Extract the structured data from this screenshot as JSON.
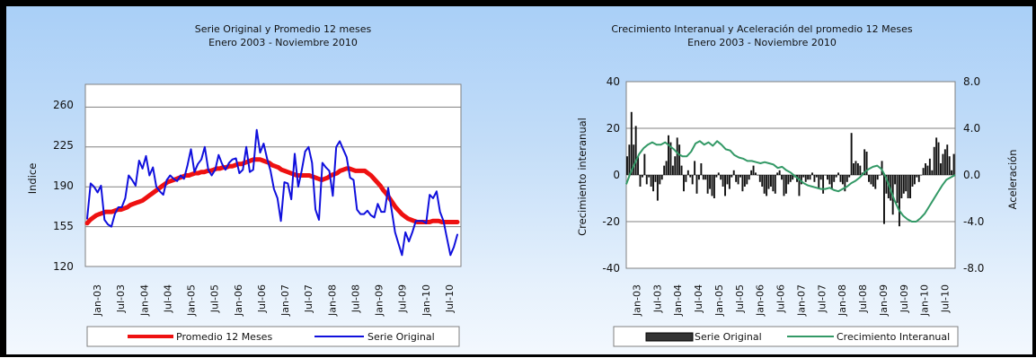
{
  "chart_data": [
    {
      "type": "line",
      "title": "Serie Original y Promedio 12 meses",
      "subtitle": "Enero 2003 - Noviembre 2010",
      "xlabel": "",
      "ylabel": "Indice",
      "ylim": [
        120,
        280
      ],
      "yticks": [
        "120",
        "155",
        "190",
        "225",
        "260"
      ],
      "x_tick_labels": [
        "Jan-03",
        "Jul-03",
        "Jan-04",
        "Jul-04",
        "Jan-05",
        "Jul-05",
        "Jan-06",
        "Jul-06",
        "Jan-07",
        "Jul-07",
        "Jan-08",
        "Jul-08",
        "Jan-09",
        "Jul-09",
        "Jan-10",
        "Jul-10"
      ],
      "grid": true,
      "legend_position": "bottom",
      "series": [
        {
          "name": "Promedio 12 Meses",
          "color": "#ee1111",
          "values": [
            158,
            161,
            163,
            165,
            166,
            167,
            168,
            168,
            168,
            169,
            170,
            170,
            171,
            172,
            174,
            175,
            176,
            177,
            178,
            180,
            182,
            184,
            186,
            188,
            190,
            192,
            194,
            195,
            196,
            197,
            198,
            199,
            200,
            200,
            201,
            202,
            202,
            203,
            203,
            204,
            204,
            205,
            206,
            206,
            207,
            207,
            208,
            208,
            209,
            210,
            210,
            211,
            212,
            213,
            214,
            214,
            214,
            213,
            212,
            211,
            209,
            208,
            207,
            205,
            204,
            203,
            202,
            201,
            200,
            200,
            200,
            200,
            200,
            199,
            198,
            197,
            196,
            197,
            198,
            200,
            201,
            202,
            204,
            205,
            206,
            206,
            205,
            204,
            204,
            204,
            204,
            202,
            200,
            197,
            194,
            191,
            187,
            184,
            180,
            176,
            172,
            169,
            166,
            164,
            162,
            161,
            160,
            159,
            159,
            159,
            159,
            159,
            160,
            160,
            160,
            159,
            159,
            159,
            159,
            159,
            159
          ]
        },
        {
          "name": "Serie Original",
          "color": "#1010dd",
          "values": [
            162,
            193,
            190,
            185,
            191,
            161,
            157,
            155,
            166,
            172,
            172,
            180,
            200,
            196,
            191,
            213,
            206,
            217,
            200,
            207,
            190,
            186,
            183,
            196,
            200,
            197,
            195,
            200,
            197,
            209,
            223,
            203,
            210,
            214,
            225,
            205,
            200,
            205,
            218,
            210,
            205,
            211,
            214,
            215,
            202,
            205,
            225,
            203,
            205,
            240,
            220,
            228,
            215,
            204,
            188,
            180,
            160,
            194,
            193,
            179,
            219,
            190,
            204,
            221,
            225,
            211,
            170,
            161,
            211,
            207,
            204,
            182,
            225,
            230,
            223,
            216,
            198,
            196,
            170,
            166,
            166,
            169,
            165,
            163,
            175,
            168,
            168,
            189,
            170,
            150,
            140,
            130,
            150,
            142,
            150,
            160,
            160,
            160,
            158,
            183,
            180,
            186,
            168,
            160,
            145,
            130,
            137,
            148
          ]
        }
      ]
    },
    {
      "type": "bar",
      "title": "Crecimiento Interanual y Aceleración del  promedio 12 Meses",
      "subtitle": "Enero 2003 - Noviembre 2010",
      "ylabel": "Crecimiento interanual",
      "ylabel_right": "Aceleración",
      "ylim": [
        -40,
        40
      ],
      "ylim_right": [
        -8,
        8
      ],
      "yticks": [
        "-40",
        "-20",
        "0",
        "20",
        "40"
      ],
      "yticks_right": [
        "-8.0",
        "-4.0",
        "0.0",
        "4.0",
        "8.0"
      ],
      "x_tick_labels": [
        "Jan-03",
        "Jul-03",
        "Jan-04",
        "Jul-04",
        "Jan-05",
        "Jul-05",
        "Jan-06",
        "Jul-06",
        "Jan-07",
        "Jul-07",
        "Jan-08",
        "Jul-08",
        "Jan-09",
        "Jul-09",
        "Jan-10",
        "Jul-10"
      ],
      "grid": true,
      "legend_position": "bottom",
      "series": [
        {
          "name": "Serie Original",
          "color": "#111111",
          "axis": "left",
          "values": [
            8,
            13,
            27,
            13,
            21,
            8,
            -5,
            -1,
            9,
            -4,
            -1,
            -5,
            -7,
            -3,
            -11,
            -4,
            -2,
            4,
            6,
            17,
            14,
            4,
            8,
            16,
            13,
            4,
            -7,
            -3,
            2,
            -1,
            -4,
            6,
            -8,
            -2,
            5,
            -2,
            -2,
            -8,
            -6,
            -9,
            -10,
            -1,
            1,
            -2,
            -5,
            -9,
            -4,
            -6,
            -1,
            2,
            -3,
            -4,
            -1,
            -7,
            -5,
            -4,
            -2,
            2,
            4,
            1,
            0,
            -3,
            -5,
            -8,
            -9,
            -6,
            -5,
            -7,
            -8,
            1,
            2,
            -2,
            -9,
            -8,
            -4,
            -3,
            -2,
            -1,
            -3,
            -9,
            -4,
            -1,
            -3,
            -2,
            -2,
            1,
            -3,
            -1,
            -6,
            -2,
            -8,
            0,
            -2,
            -4,
            -6,
            -3,
            -1,
            1,
            -3,
            -4,
            -7,
            -3,
            -1,
            18,
            5,
            6,
            5,
            4,
            1,
            11,
            10,
            -3,
            -4,
            -5,
            -6,
            -2,
            0,
            6,
            -21,
            -8,
            -10,
            -11,
            -17,
            -4,
            -12,
            -22,
            -10,
            -8,
            -7,
            -10,
            -10,
            -5,
            -4,
            -1,
            -3,
            0,
            3,
            5,
            4,
            7,
            2,
            12,
            16,
            14,
            5,
            9,
            11,
            13,
            8,
            2,
            9
          ]
        },
        {
          "name": "Crecimiento Interanual",
          "color": "#339966",
          "axis": "right",
          "values": [
            -0.8,
            0.2,
            1.0,
            1.8,
            2.3,
            2.6,
            2.8,
            2.6,
            2.6,
            2.8,
            2.5,
            2.2,
            1.8,
            1.6,
            1.6,
            2.0,
            2.7,
            2.9,
            2.6,
            2.8,
            2.5,
            2.9,
            2.6,
            2.2,
            2.1,
            1.7,
            1.5,
            1.4,
            1.2,
            1.2,
            1.1,
            1.0,
            1.1,
            1.0,
            0.9,
            0.6,
            0.7,
            0.4,
            0.2,
            -0.1,
            -0.4,
            -0.7,
            -0.9,
            -1.0,
            -1.1,
            -1.2,
            -1.2,
            -1.1,
            -1.3,
            -1.4,
            -1.2,
            -1.0,
            -0.7,
            -0.5,
            -0.2,
            0.2,
            0.5,
            0.7,
            0.8,
            0.5,
            -0.2,
            -1.2,
            -2.2,
            -3.0,
            -3.5,
            -3.8,
            -4.0,
            -4.0,
            -3.7,
            -3.3,
            -2.7,
            -2.1,
            -1.5,
            -0.9,
            -0.4,
            -0.2,
            0.0
          ]
        }
      ]
    }
  ]
}
